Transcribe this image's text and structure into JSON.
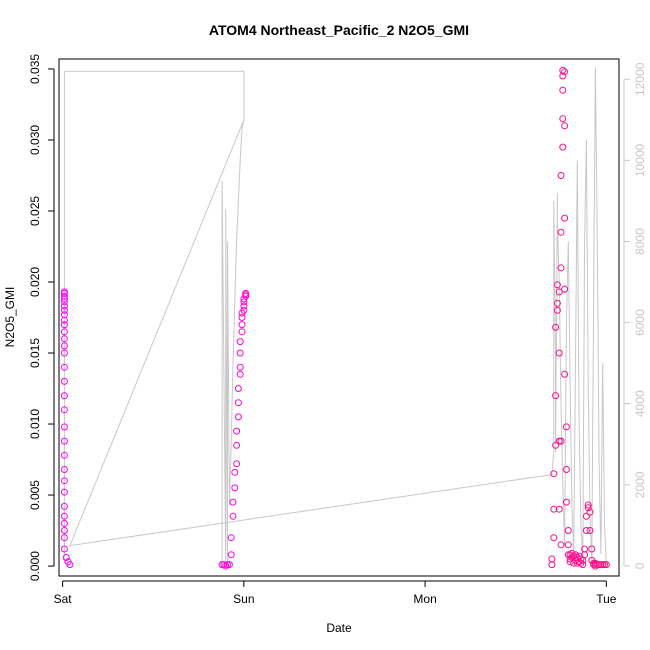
{
  "chart_data": {
    "type": "scatter",
    "title": "ATOM4 Northeast_Pacific_2 N2O5_GMI",
    "xlabel": "Date",
    "ylabel": "N2O5_GMI",
    "x_ticks": [
      "Sat",
      "Sun",
      "Mon",
      "Tue"
    ],
    "x_range": [
      -0.02,
      3.07
    ],
    "ylim": [
      -0.0007,
      0.0357
    ],
    "y_ticks": [
      "0.000",
      "0.005",
      "0.010",
      "0.015",
      "0.020",
      "0.025",
      "0.030",
      "0.035"
    ],
    "y2lim": [
      -250,
      12500
    ],
    "y2_ticks": [
      "0",
      "2000",
      "4000",
      "6000",
      "8000",
      "10000",
      "12000"
    ],
    "grid": false,
    "colors": {
      "points_start": "#ff00ff",
      "points_end": "#ff1080",
      "altitude_line": "#c8c8c8"
    },
    "altitude_line": {
      "x": [
        0.01,
        0.01,
        0.02,
        1.0,
        1.0,
        1.0,
        0.04,
        2.7,
        2.71,
        2.71,
        2.72,
        2.72,
        2.73,
        2.73,
        2.74,
        2.75,
        2.76,
        2.77,
        2.78,
        2.79,
        2.8,
        2.81,
        2.82,
        2.83,
        2.84,
        2.85,
        2.86,
        2.87,
        2.88,
        2.89,
        2.9,
        2.91,
        2.92,
        2.93,
        2.94,
        2.95,
        2.96,
        2.97,
        2.98,
        2.99,
        3.0
      ],
      "y": [
        50,
        12200,
        12200,
        12200,
        11500,
        11000,
        500,
        2250,
        2800,
        9000,
        5000,
        2800,
        9200,
        8500,
        7000,
        4000,
        2000,
        500,
        6000,
        8000,
        4500,
        1500,
        300,
        5000,
        10000,
        3500,
        1000,
        200,
        8000,
        10500,
        4500,
        1200,
        150,
        6500,
        12300,
        8000,
        2500,
        300,
        5000,
        1000,
        50
      ]
    },
    "altitude_spikes": [
      {
        "x": [
          0.88,
          0.88,
          0.9,
          0.9,
          0.91,
          0.91,
          0.92,
          0.93,
          0.94,
          0.95,
          0.96,
          0.97,
          0.98,
          0.99,
          1.0
        ],
        "y": [
          0,
          9500,
          100,
          8800,
          0,
          8000,
          1500,
          3000,
          5000,
          6500,
          8000,
          9000,
          10000,
          10800,
          11000
        ]
      }
    ],
    "series": [
      {
        "x": [
          0.01,
          0.01,
          0.01,
          0.01,
          0.01,
          0.01,
          0.01,
          0.01,
          0.01,
          0.01,
          0.01,
          0.01,
          0.01,
          0.01,
          0.01,
          0.01,
          0.01,
          0.01,
          0.01,
          0.01,
          0.01,
          0.01,
          0.01,
          0.01,
          0.01,
          0.01,
          0.01,
          0.01,
          0.01,
          0.01,
          0.02,
          0.03,
          0.04
        ],
        "y": [
          0.0193,
          0.0192,
          0.019,
          0.0188,
          0.0186,
          0.0183,
          0.018,
          0.0177,
          0.0173,
          0.017,
          0.0165,
          0.016,
          0.0155,
          0.015,
          0.014,
          0.013,
          0.012,
          0.011,
          0.0098,
          0.0088,
          0.0078,
          0.0068,
          0.006,
          0.0052,
          0.0042,
          0.0035,
          0.003,
          0.0025,
          0.002,
          0.0012,
          0.0006,
          0.0003,
          0.0001
        ]
      },
      {
        "x": [
          0.88,
          0.89,
          0.9,
          0.91,
          0.92,
          0.93,
          0.93,
          0.94,
          0.94,
          0.95,
          0.95,
          0.96,
          0.96,
          0.96,
          0.97,
          0.97,
          0.97,
          0.98,
          0.98,
          0.98,
          0.98,
          0.99,
          0.99,
          0.99,
          0.99,
          1.0,
          1.0,
          1.0,
          1.0,
          1.01,
          1.01,
          1.01
        ],
        "y": [
          0.0001,
          0.0001,
          0.0,
          0.0001,
          0.0001,
          0.0008,
          0.002,
          0.0035,
          0.0045,
          0.0055,
          0.0066,
          0.0072,
          0.0085,
          0.0095,
          0.0105,
          0.0115,
          0.0125,
          0.0135,
          0.014,
          0.015,
          0.0158,
          0.0165,
          0.017,
          0.0175,
          0.0178,
          0.018,
          0.0183,
          0.0186,
          0.0188,
          0.019,
          0.0191,
          0.0192
        ]
      },
      {
        "x": [
          2.7,
          2.7,
          2.71,
          2.71,
          2.71,
          2.72,
          2.72,
          2.72,
          2.73,
          2.73,
          2.73,
          2.74,
          2.74,
          2.74,
          2.74,
          2.75,
          2.75,
          2.75,
          2.75,
          2.75,
          2.76,
          2.76,
          2.76,
          2.76,
          2.76,
          2.77,
          2.77,
          2.77,
          2.77,
          2.77,
          2.78,
          2.78,
          2.78,
          2.79,
          2.79,
          2.79,
          2.8,
          2.8,
          2.8,
          2.81,
          2.81,
          2.82,
          2.82,
          2.83,
          2.83,
          2.84,
          2.84,
          2.85,
          2.85,
          2.86,
          2.86,
          2.87,
          2.87,
          2.88,
          2.88,
          2.89,
          2.89,
          2.9,
          2.9,
          2.91,
          2.91,
          2.92,
          2.92,
          2.93,
          2.93,
          2.94,
          2.94,
          2.95,
          2.96,
          2.97,
          2.98,
          2.99,
          3.0
        ],
        "y": [
          0.0001,
          0.0005,
          0.002,
          0.004,
          0.0065,
          0.0085,
          0.012,
          0.0168,
          0.018,
          0.0185,
          0.0198,
          0.0193,
          0.015,
          0.0088,
          0.004,
          0.0015,
          0.0088,
          0.021,
          0.0235,
          0.0275,
          0.0295,
          0.0315,
          0.0335,
          0.0345,
          0.0349,
          0.0348,
          0.031,
          0.0245,
          0.0195,
          0.0135,
          0.0098,
          0.0068,
          0.0045,
          0.0015,
          0.0008,
          0.0025,
          0.0003,
          0.0005,
          0.0008,
          0.0006,
          0.0009,
          0.0002,
          0.0007,
          0.0004,
          0.0008,
          0.0002,
          0.0006,
          0.0003,
          0.0007,
          0.0002,
          0.0005,
          0.0001,
          0.0004,
          0.0008,
          0.0012,
          0.0025,
          0.0035,
          0.0041,
          0.0043,
          0.0038,
          0.0025,
          0.0012,
          0.0004,
          0.0002,
          0.0001,
          0.0,
          0.0002,
          0.0001,
          0.0001,
          0.0001,
          0.0001,
          0.0001,
          0.0001
        ]
      }
    ]
  }
}
